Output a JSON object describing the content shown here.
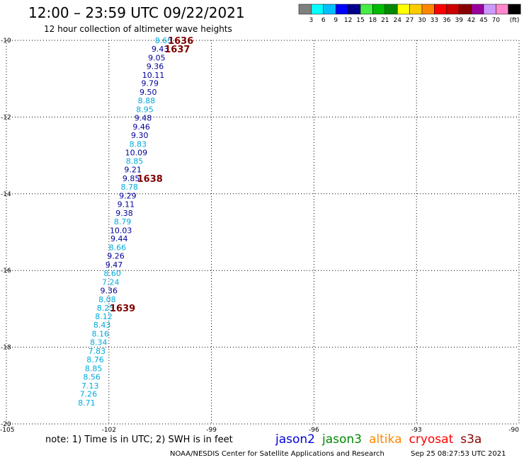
{
  "header": {
    "title": "12:00 – 23:59 UTC 09/22/2021",
    "subtitle": "12 hour collection of altimeter wave heights"
  },
  "legend": {
    "unit_label": "(ft)",
    "bins": [
      {
        "label": "3",
        "color": "#808080"
      },
      {
        "label": "6",
        "color": "#00ffff"
      },
      {
        "label": "9",
        "color": "#00bfff"
      },
      {
        "label": "12",
        "color": "#0000ff"
      },
      {
        "label": "15",
        "color": "#00008b"
      },
      {
        "label": "18",
        "color": "#44ee44"
      },
      {
        "label": "21",
        "color": "#00bb00"
      },
      {
        "label": "24",
        "color": "#008800"
      },
      {
        "label": "27",
        "color": "#ffff00"
      },
      {
        "label": "30",
        "color": "#ffcc00"
      },
      {
        "label": "33",
        "color": "#ff8800"
      },
      {
        "label": "36",
        "color": "#ff0000"
      },
      {
        "label": "39",
        "color": "#cc0000"
      },
      {
        "label": "42",
        "color": "#880000"
      },
      {
        "label": "45",
        "color": "#990099"
      },
      {
        "label": "70",
        "color": "#cc99ff"
      },
      {
        "label": "",
        "color": "#ff88cc"
      },
      {
        "label": "",
        "color": "#000000"
      }
    ]
  },
  "chart_data": {
    "type": "scatter",
    "title": "12:00 – 23:59 UTC 09/22/2021",
    "subtitle": "12 hour collection of altimeter wave heights",
    "xlim": [
      -105,
      -90
    ],
    "ylim": [
      -20,
      -10
    ],
    "x_ticks": [
      -105,
      -102,
      -99,
      -96,
      -93,
      -90
    ],
    "y_ticks": [
      -10,
      -12,
      -14,
      -16,
      -18,
      -20
    ],
    "grid": true,
    "points": [
      {
        "x": -100.4,
        "y": -10.0,
        "v": "8.65",
        "c": "#00aadd"
      },
      {
        "x": -100.5,
        "y": -10.22,
        "v": "9.43",
        "c": "#000099"
      },
      {
        "x": -100.6,
        "y": -10.45,
        "v": "9.05",
        "c": "#000099"
      },
      {
        "x": -100.65,
        "y": -10.67,
        "v": "9.36",
        "c": "#000099"
      },
      {
        "x": -100.7,
        "y": -10.9,
        "v": "10.11",
        "c": "#000099"
      },
      {
        "x": -100.8,
        "y": -11.12,
        "v": "9.79",
        "c": "#000099"
      },
      {
        "x": -100.85,
        "y": -11.35,
        "v": "9.50",
        "c": "#000099"
      },
      {
        "x": -100.9,
        "y": -11.57,
        "v": "8.88",
        "c": "#00aadd"
      },
      {
        "x": -100.95,
        "y": -11.8,
        "v": "8.95",
        "c": "#00aadd"
      },
      {
        "x": -101.0,
        "y": -12.02,
        "v": "9.48",
        "c": "#000099"
      },
      {
        "x": -101.05,
        "y": -12.25,
        "v": "9.46",
        "c": "#000099"
      },
      {
        "x": -101.1,
        "y": -12.47,
        "v": "9.30",
        "c": "#000099"
      },
      {
        "x": -101.15,
        "y": -12.7,
        "v": "8.83",
        "c": "#00aadd"
      },
      {
        "x": -101.2,
        "y": -12.92,
        "v": "10.09",
        "c": "#000099"
      },
      {
        "x": -101.25,
        "y": -13.15,
        "v": "8.85",
        "c": "#00aadd"
      },
      {
        "x": -101.3,
        "y": -13.37,
        "v": "9.21",
        "c": "#000099"
      },
      {
        "x": -101.35,
        "y": -13.6,
        "v": "9.85",
        "c": "#000099"
      },
      {
        "x": -101.4,
        "y": -13.82,
        "v": "8.78",
        "c": "#00aadd"
      },
      {
        "x": -101.45,
        "y": -14.05,
        "v": "9.29",
        "c": "#000099"
      },
      {
        "x": -101.5,
        "y": -14.27,
        "v": "9.11",
        "c": "#000099"
      },
      {
        "x": -101.55,
        "y": -14.5,
        "v": "9.38",
        "c": "#000099"
      },
      {
        "x": -101.6,
        "y": -14.72,
        "v": "8.79",
        "c": "#00aadd"
      },
      {
        "x": -101.65,
        "y": -14.95,
        "v": "10.03",
        "c": "#000099"
      },
      {
        "x": -101.7,
        "y": -15.17,
        "v": "9.44",
        "c": "#000099"
      },
      {
        "x": -101.75,
        "y": -15.4,
        "v": "8.66",
        "c": "#00aadd"
      },
      {
        "x": -101.8,
        "y": -15.62,
        "v": "9.26",
        "c": "#000099"
      },
      {
        "x": -101.85,
        "y": -15.85,
        "v": "9.47",
        "c": "#000099"
      },
      {
        "x": -101.9,
        "y": -16.07,
        "v": "8.60",
        "c": "#00aadd"
      },
      {
        "x": -101.95,
        "y": -16.3,
        "v": "7.24",
        "c": "#00aadd"
      },
      {
        "x": -102.0,
        "y": -16.52,
        "v": "9.36",
        "c": "#000099"
      },
      {
        "x": -102.05,
        "y": -16.75,
        "v": "8.08",
        "c": "#00aadd"
      },
      {
        "x": -102.1,
        "y": -16.97,
        "v": "8.25",
        "c": "#00aadd"
      },
      {
        "x": -102.15,
        "y": -17.2,
        "v": "8.12",
        "c": "#00aadd"
      },
      {
        "x": -102.2,
        "y": -17.42,
        "v": "8.43",
        "c": "#00aadd"
      },
      {
        "x": -102.25,
        "y": -17.65,
        "v": "8.16",
        "c": "#00aadd"
      },
      {
        "x": -102.3,
        "y": -17.87,
        "v": "8.34",
        "c": "#00aadd"
      },
      {
        "x": -102.35,
        "y": -18.1,
        "v": "7.83",
        "c": "#00aadd"
      },
      {
        "x": -102.4,
        "y": -18.32,
        "v": "8.76",
        "c": "#00aadd"
      },
      {
        "x": -102.45,
        "y": -18.55,
        "v": "8.85",
        "c": "#00aadd"
      },
      {
        "x": -102.5,
        "y": -18.77,
        "v": "8.56",
        "c": "#00aadd"
      },
      {
        "x": -102.55,
        "y": -19.0,
        "v": "7.13",
        "c": "#00aadd"
      },
      {
        "x": -102.6,
        "y": -19.22,
        "v": "7.26",
        "c": "#00aadd"
      },
      {
        "x": -102.65,
        "y": -19.45,
        "v": "8.71",
        "c": "#00aadd"
      }
    ],
    "pass_labels": [
      {
        "x": -99.9,
        "y": -10.0,
        "text": "1636"
      },
      {
        "x": -100.0,
        "y": -10.22,
        "text": "1637"
      },
      {
        "x": -100.8,
        "y": -13.6,
        "text": "1638"
      },
      {
        "x": -101.6,
        "y": -16.97,
        "text": "1639"
      }
    ]
  },
  "footer": {
    "note": "note: 1) Time is in UTC; 2) SWH is in feet",
    "satellites": [
      {
        "name": "jason2",
        "color": "#0000dd"
      },
      {
        "name": "jason3",
        "color": "#008800"
      },
      {
        "name": "altika",
        "color": "#ff8800"
      },
      {
        "name": "cryosat",
        "color": "#ff0000"
      },
      {
        "name": "s3a",
        "color": "#880000"
      }
    ],
    "credit": "NOAA/NESDIS Center for Satellite Applications and Research",
    "timestamp": "Sep 25 08:27:53 UTC 2021"
  }
}
